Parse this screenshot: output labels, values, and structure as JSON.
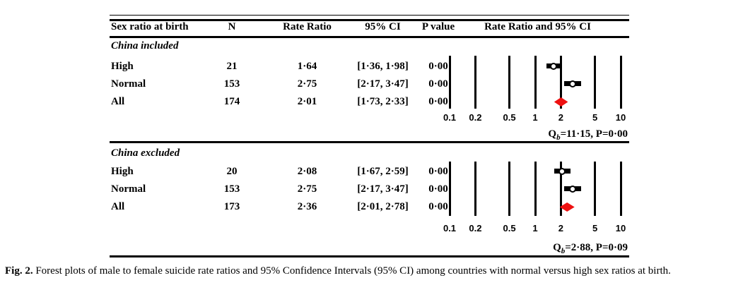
{
  "figure": {
    "caption_label": "Fig. 2.",
    "caption_text": " Forest plots of male to female suicide rate ratios and 95% Confidence Intervals (95% CI) among countries with normal versus high sex ratios at birth."
  },
  "table": {
    "headers": {
      "sex_ratio": "Sex ratio at birth",
      "n": "N",
      "rate_ratio": "Rate Ratio",
      "ci": "95% CI",
      "p_value": "P value",
      "plot": "Rate Ratio and 95% CI"
    }
  },
  "chart_data": {
    "type": "forest",
    "x_scale": "log10",
    "xlim": [
      0.1,
      10
    ],
    "x_ticks": [
      0.1,
      0.2,
      0.5,
      1,
      2,
      5,
      10
    ],
    "x_tick_labels": [
      "0.1",
      "0.2",
      "0.5",
      "1",
      "2",
      "5",
      "10"
    ],
    "grid": "vertical-reference-lines",
    "marker_color": "#000000",
    "summary_color": "#ee1111",
    "panels": [
      {
        "group_label": "China included",
        "rows": [
          {
            "type": "study",
            "label": "High",
            "n": "21",
            "rr_display": "1·64",
            "ci_display": "[1·36, 1·98]",
            "p": "0·00",
            "rr": 1.64,
            "ci_low": 1.36,
            "ci_high": 1.98
          },
          {
            "type": "study",
            "label": "Normal",
            "n": "153",
            "rr_display": "2·75",
            "ci_display": "[2·17, 3·47]",
            "p": "0·00",
            "rr": 2.75,
            "ci_low": 2.17,
            "ci_high": 3.47
          },
          {
            "type": "summary",
            "label": "All",
            "n": "174",
            "rr_display": "2·01",
            "ci_display": "[1·73, 2·33]",
            "p": "0·00",
            "rr": 2.01,
            "ci_low": 1.73,
            "ci_high": 2.33
          }
        ],
        "heterogeneity": {
          "q": "Q",
          "q_sub": "b",
          "rest": "=11·15, P=0·00"
        }
      },
      {
        "group_label": "China excluded",
        "rows": [
          {
            "type": "study",
            "label": "High",
            "n": "20",
            "rr_display": "2·08",
            "ci_display": "[1·67, 2·59]",
            "p": "0·00",
            "rr": 2.08,
            "ci_low": 1.67,
            "ci_high": 2.59
          },
          {
            "type": "study",
            "label": "Normal",
            "n": "153",
            "rr_display": "2·75",
            "ci_display": "[2·17, 3·47]",
            "p": "0·00",
            "rr": 2.75,
            "ci_low": 2.17,
            "ci_high": 3.47
          },
          {
            "type": "summary",
            "label": "All",
            "n": "173",
            "rr_display": "2·36",
            "ci_display": "[2·01, 2·78]",
            "p": "0·00",
            "rr": 2.36,
            "ci_low": 2.01,
            "ci_high": 2.78
          }
        ],
        "heterogeneity": {
          "q": "Q",
          "q_sub": "b",
          "rest": "=2·88, P=0·09"
        }
      }
    ]
  }
}
